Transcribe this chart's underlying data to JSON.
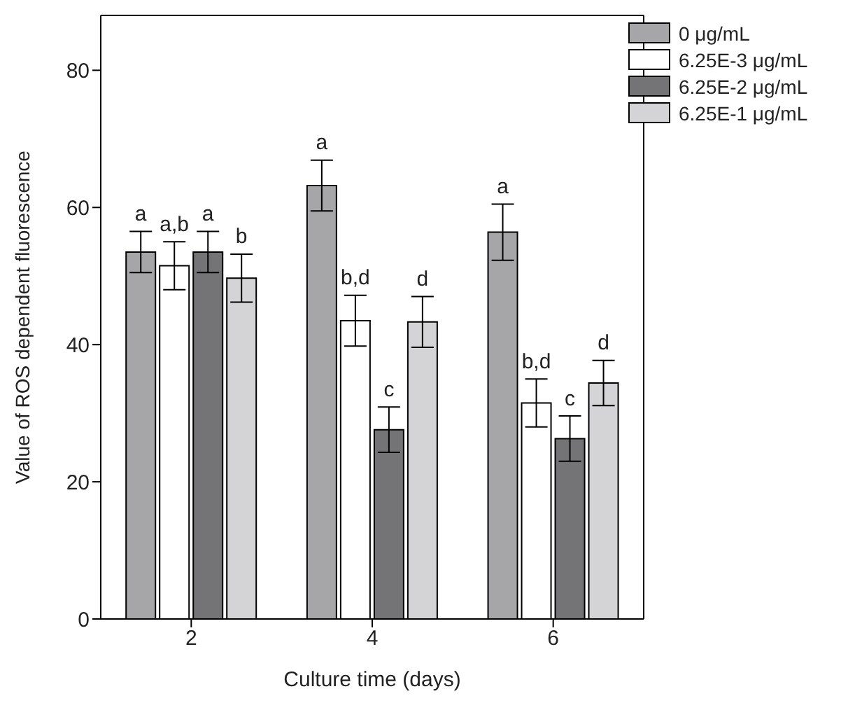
{
  "chart_data": {
    "type": "bar",
    "xlabel": "Culture time (days)",
    "ylabel": "Value of ROS dependent fluorescence",
    "categories": [
      "2",
      "4",
      "6"
    ],
    "ylim": [
      0,
      88
    ],
    "yticks": [
      0,
      20,
      40,
      60,
      80
    ],
    "grid": false,
    "legend": "top right",
    "series": [
      {
        "name": "0 μg/mL",
        "color": "#a6a6a8",
        "values": [
          53.5,
          63.2,
          56.4
        ],
        "errors": [
          3,
          3.7,
          4.1
        ],
        "value_labels": [
          "a",
          "a",
          "a"
        ]
      },
      {
        "name": "6.25E-3 μg/mL",
        "color": "#ffffff",
        "values": [
          51.5,
          43.5,
          31.5
        ],
        "errors": [
          3.5,
          3.7,
          3.5
        ],
        "value_labels": [
          "a,b",
          "b,d",
          "b,d"
        ]
      },
      {
        "name": "6.25E-2 μg/mL",
        "color": "#747476",
        "values": [
          53.5,
          27.6,
          26.3
        ],
        "errors": [
          3,
          3.3,
          3.3
        ],
        "value_labels": [
          "a",
          "c",
          "c"
        ]
      },
      {
        "name": "6.25E-1 μg/mL",
        "color": "#d4d4d6",
        "values": [
          49.7,
          43.3,
          34.4
        ],
        "errors": [
          3.5,
          3.7,
          3.3
        ],
        "value_labels": [
          "b",
          "d",
          "d"
        ]
      }
    ]
  }
}
